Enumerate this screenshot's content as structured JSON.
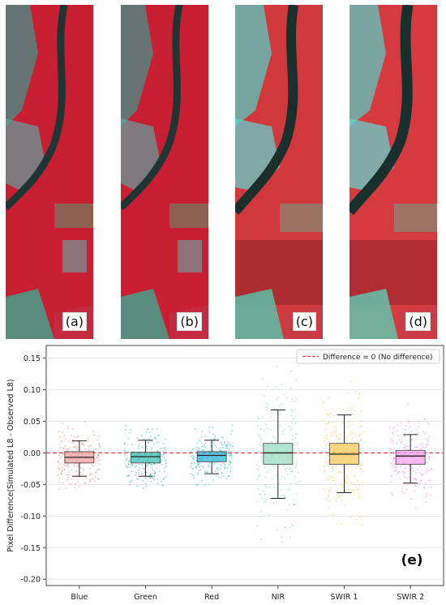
{
  "panels": [
    {
      "label": "(a)"
    },
    {
      "label": "(b)"
    },
    {
      "label": "(c)"
    },
    {
      "label": "(d)"
    }
  ],
  "chart_data": {
    "type": "box",
    "panel_label": "(e)",
    "ylabel": "Pixel Difference(Simulated L8 - Observed L8)",
    "ylim": [
      -0.21,
      0.17
    ],
    "yticks": [
      0.15,
      0.1,
      0.05,
      0.0,
      -0.05,
      -0.1,
      -0.15,
      -0.2
    ],
    "ytick_labels": [
      "0.15",
      "0.10",
      "0.05",
      "0.00",
      "-0.05",
      "-0.10",
      "-0.15",
      "-0.20"
    ],
    "grid": true,
    "legend": {
      "position": "top-right",
      "entries": [
        "Difference = 0 (No difference)"
      ]
    },
    "reference_line": {
      "y": 0.0,
      "style": "dashed",
      "color": "#e8382f"
    },
    "categories": [
      "Blue",
      "Green",
      "Red",
      "NIR",
      "SWIR 1",
      "SWIR 2"
    ],
    "series": [
      {
        "category": "Blue",
        "whisker_low": -0.037,
        "q1": -0.016,
        "median": -0.007,
        "q3": 0.002,
        "whisker_high": 0.019,
        "color": "#f07f7f",
        "box_color": "#f0a0a0"
      },
      {
        "category": "Green",
        "whisker_low": -0.037,
        "q1": -0.016,
        "median": -0.006,
        "q3": 0.001,
        "whisker_high": 0.02,
        "color": "#35b5ad",
        "box_color": "#3fbcb4"
      },
      {
        "category": "Red",
        "whisker_low": -0.033,
        "q1": -0.014,
        "median": -0.004,
        "q3": 0.002,
        "whisker_high": 0.02,
        "color": "#25b8d6",
        "box_color": "#2fb4d8"
      },
      {
        "category": "NIR",
        "whisker_low": -0.072,
        "q1": -0.018,
        "median": 0.0,
        "q3": 0.015,
        "whisker_high": 0.068,
        "color": "#7fcfb4",
        "box_color": "#9fdcc6"
      },
      {
        "category": "SWIR 1",
        "whisker_low": -0.063,
        "q1": -0.018,
        "median": -0.002,
        "q3": 0.015,
        "whisker_high": 0.06,
        "color": "#f7bb3c",
        "box_color": "#f9c85a"
      },
      {
        "category": "SWIR 2",
        "whisker_low": -0.048,
        "q1": -0.018,
        "median": -0.005,
        "q3": 0.004,
        "whisker_high": 0.029,
        "color": "#f07ce8",
        "box_color": "#f5a3ee"
      }
    ]
  }
}
